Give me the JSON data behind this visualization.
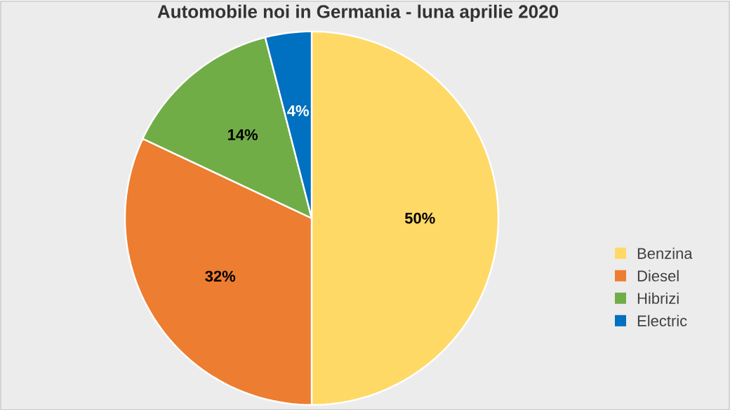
{
  "chart_data": {
    "type": "pie",
    "title": "Automobile noi in Germania - luna aprilie 2020",
    "categories": [
      "Benzina",
      "Diesel",
      "Hibrizi",
      "Electric"
    ],
    "values": [
      50,
      32,
      14,
      4
    ],
    "value_labels": [
      "50%",
      "32%",
      "14%",
      "4%"
    ],
    "colors": [
      "#ffd966",
      "#ed7d31",
      "#70ad47",
      "#0070c0"
    ],
    "legend": "right"
  }
}
